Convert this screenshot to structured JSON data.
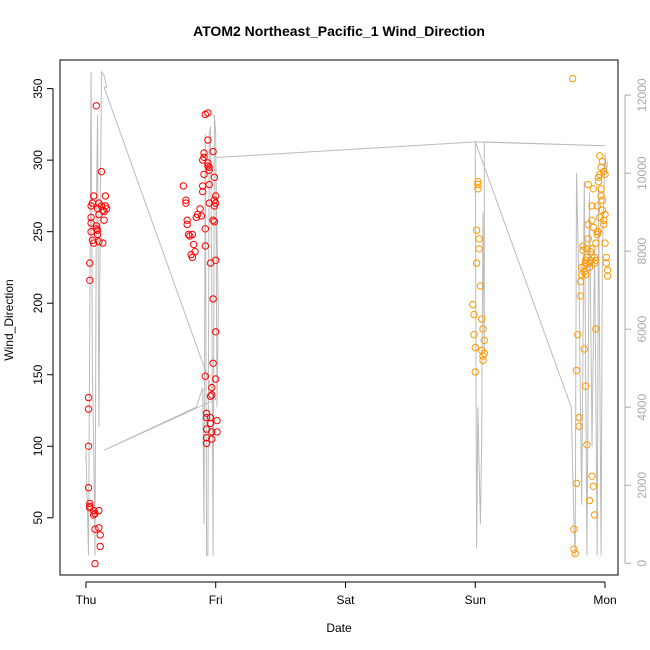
{
  "chart_data": {
    "type": "scatter",
    "title": "ATOM2 Northeast_Pacific_1 Wind_Direction",
    "xlabel": "Date",
    "ylabel": "Wind_Direction",
    "x_ticks": [
      "Thu",
      "Fri",
      "Sat",
      "Sun",
      "Mon"
    ],
    "xlim": [
      -0.2,
      4.1
    ],
    "ylim": [
      10,
      370
    ],
    "y_ticks": [
      50,
      100,
      150,
      200,
      250,
      300,
      350
    ],
    "y2lim": [
      -300,
      12900
    ],
    "y2_ticks": [
      0,
      2000,
      4000,
      6000,
      8000,
      10000,
      12000
    ],
    "grid": false,
    "colors": {
      "series1": "#ff0000",
      "series2": "#ff9900",
      "secondary_line": "#bbbbbb",
      "axis": "#000000",
      "right_axis": "#aaaaaa"
    },
    "series": [
      {
        "color": "#ff0000",
        "points": [
          [
            0.02,
            100
          ],
          [
            0.02,
            134
          ],
          [
            0.02,
            126
          ],
          [
            0.02,
            71
          ],
          [
            0.03,
            60
          ],
          [
            0.03,
            58
          ],
          [
            0.03,
            57
          ],
          [
            0.03,
            216
          ],
          [
            0.03,
            228
          ],
          [
            0.04,
            250
          ],
          [
            0.04,
            256
          ],
          [
            0.04,
            260
          ],
          [
            0.04,
            268
          ],
          [
            0.05,
            270
          ],
          [
            0.05,
            244
          ],
          [
            0.06,
            275
          ],
          [
            0.06,
            242
          ],
          [
            0.06,
            55
          ],
          [
            0.06,
            52
          ],
          [
            0.07,
            53
          ],
          [
            0.07,
            42
          ],
          [
            0.07,
            18
          ],
          [
            0.08,
            338
          ],
          [
            0.08,
            254
          ],
          [
            0.08,
            252
          ],
          [
            0.09,
            251
          ],
          [
            0.09,
            248
          ],
          [
            0.09,
            266
          ],
          [
            0.1,
            262
          ],
          [
            0.1,
            270
          ],
          [
            0.1,
            243
          ],
          [
            0.1,
            55
          ],
          [
            0.1,
            43
          ],
          [
            0.11,
            38
          ],
          [
            0.11,
            30
          ],
          [
            0.12,
            292
          ],
          [
            0.12,
            268
          ],
          [
            0.13,
            265
          ],
          [
            0.13,
            242
          ],
          [
            0.14,
            264
          ],
          [
            0.14,
            258
          ],
          [
            0.15,
            275
          ],
          [
            0.15,
            268
          ],
          [
            0.16,
            266
          ],
          [
            0.75,
            282
          ],
          [
            0.77,
            272
          ],
          [
            0.77,
            270
          ],
          [
            0.78,
            258
          ],
          [
            0.78,
            255
          ],
          [
            0.79,
            248
          ],
          [
            0.8,
            247
          ],
          [
            0.81,
            234
          ],
          [
            0.82,
            232
          ],
          [
            0.82,
            248
          ],
          [
            0.83,
            241
          ],
          [
            0.84,
            236
          ],
          [
            0.85,
            260
          ],
          [
            0.86,
            262
          ],
          [
            0.88,
            266
          ],
          [
            0.89,
            261
          ],
          [
            0.9,
            282
          ],
          [
            0.9,
            278
          ],
          [
            0.9,
            300
          ],
          [
            0.91,
            302
          ],
          [
            0.91,
            305
          ],
          [
            0.91,
            290
          ],
          [
            0.92,
            332
          ],
          [
            0.92,
            252
          ],
          [
            0.92,
            240
          ],
          [
            0.92,
            149
          ],
          [
            0.93,
            123
          ],
          [
            0.93,
            120
          ],
          [
            0.93,
            112
          ],
          [
            0.93,
            106
          ],
          [
            0.93,
            102
          ],
          [
            0.94,
            333
          ],
          [
            0.94,
            314
          ],
          [
            0.94,
            298
          ],
          [
            0.94,
            296
          ],
          [
            0.95,
            295
          ],
          [
            0.95,
            293
          ],
          [
            0.95,
            283
          ],
          [
            0.95,
            270
          ],
          [
            0.96,
            228
          ],
          [
            0.96,
            135
          ],
          [
            0.96,
            120
          ],
          [
            0.96,
            116
          ],
          [
            0.97,
            141
          ],
          [
            0.97,
            136
          ],
          [
            0.97,
            105
          ],
          [
            0.97,
            110
          ],
          [
            0.98,
            306
          ],
          [
            0.98,
            258
          ],
          [
            0.98,
            203
          ],
          [
            0.98,
            158
          ],
          [
            0.99,
            288
          ],
          [
            0.99,
            272
          ],
          [
            0.99,
            268
          ],
          [
            0.99,
            257
          ],
          [
            1.0,
            275
          ],
          [
            1.0,
            270
          ],
          [
            1.0,
            230
          ],
          [
            1.0,
            180
          ],
          [
            1.01,
            110
          ],
          [
            1.01,
            118
          ],
          [
            1.0,
            147
          ]
        ]
      },
      {
        "color": "#ff9900",
        "points": [
          [
            2.98,
            199
          ],
          [
            2.99,
            192
          ],
          [
            2.99,
            178
          ],
          [
            3.0,
            169
          ],
          [
            3.0,
            152
          ],
          [
            3.01,
            228
          ],
          [
            3.01,
            251
          ],
          [
            3.02,
            280
          ],
          [
            3.02,
            283
          ],
          [
            3.02,
            285
          ],
          [
            3.03,
            245
          ],
          [
            3.03,
            238
          ],
          [
            3.04,
            212
          ],
          [
            3.05,
            189
          ],
          [
            3.05,
            167
          ],
          [
            3.06,
            163
          ],
          [
            3.06,
            160
          ],
          [
            3.06,
            182
          ],
          [
            3.07,
            165
          ],
          [
            3.07,
            174
          ],
          [
            3.75,
            357
          ],
          [
            3.76,
            42
          ],
          [
            3.76,
            28
          ],
          [
            3.77,
            25
          ],
          [
            3.78,
            74
          ],
          [
            3.78,
            153
          ],
          [
            3.79,
            178
          ],
          [
            3.8,
            120
          ],
          [
            3.8,
            114
          ],
          [
            3.81,
            205
          ],
          [
            3.81,
            215
          ],
          [
            3.82,
            220
          ],
          [
            3.82,
            225
          ],
          [
            3.83,
            237
          ],
          [
            3.83,
            240
          ],
          [
            3.84,
            222
          ],
          [
            3.84,
            226
          ],
          [
            3.85,
            228
          ],
          [
            3.85,
            230
          ],
          [
            3.85,
            220
          ],
          [
            3.86,
            232
          ],
          [
            3.86,
            238
          ],
          [
            3.87,
            245
          ],
          [
            3.87,
            255
          ],
          [
            3.87,
            283
          ],
          [
            3.88,
            225
          ],
          [
            3.88,
            228
          ],
          [
            3.89,
            230
          ],
          [
            3.89,
            236
          ],
          [
            3.9,
            238
          ],
          [
            3.9,
            258
          ],
          [
            3.9,
            268
          ],
          [
            3.91,
            280
          ],
          [
            3.91,
            253
          ],
          [
            3.92,
            232
          ],
          [
            3.92,
            228
          ],
          [
            3.93,
            230
          ],
          [
            3.93,
            242
          ],
          [
            3.94,
            248
          ],
          [
            3.94,
            250
          ],
          [
            3.95,
            285
          ],
          [
            3.95,
            288
          ],
          [
            3.96,
            290
          ],
          [
            3.96,
            303
          ],
          [
            3.97,
            280
          ],
          [
            3.97,
            275
          ],
          [
            3.98,
            272
          ],
          [
            3.98,
            265
          ],
          [
            3.99,
            258
          ],
          [
            3.99,
            255
          ],
          [
            4.0,
            262
          ],
          [
            4.0,
            242
          ],
          [
            4.01,
            232
          ],
          [
            4.01,
            228
          ],
          [
            4.02,
            223
          ],
          [
            4.02,
            219
          ],
          [
            3.84,
            168
          ],
          [
            3.85,
            142
          ],
          [
            3.86,
            101
          ],
          [
            3.88,
            62
          ],
          [
            3.9,
            79
          ],
          [
            3.91,
            72
          ],
          [
            3.92,
            52
          ],
          [
            3.93,
            182
          ],
          [
            3.94,
            268
          ],
          [
            3.95,
            250
          ],
          [
            3.96,
            260
          ],
          [
            3.97,
            295
          ],
          [
            3.98,
            299
          ],
          [
            3.99,
            292
          ],
          [
            4.0,
            290
          ]
        ]
      }
    ],
    "secondary_line": {
      "axis": "right",
      "points": [
        [
          0.0,
          2600
        ],
        [
          0.0,
          2900
        ],
        [
          0.02,
          200
        ],
        [
          0.04,
          12600
        ],
        [
          0.05,
          5000
        ],
        [
          0.06,
          3000
        ],
        [
          0.07,
          200
        ],
        [
          0.08,
          9000
        ],
        [
          0.09,
          11500
        ],
        [
          0.1,
          3500
        ],
        [
          0.11,
          8800
        ],
        [
          0.12,
          12600
        ],
        [
          0.14,
          12500
        ],
        [
          0.16,
          12200
        ],
        [
          0.14,
          12200
        ],
        [
          1.0,
          4200
        ],
        [
          0.14,
          2900
        ],
        [
          0.85,
          4000
        ],
        [
          0.9,
          4500
        ],
        [
          0.91,
          1000
        ],
        [
          0.92,
          11000
        ],
        [
          0.93,
          200
        ],
        [
          0.94,
          200
        ],
        [
          0.95,
          11000
        ],
        [
          0.96,
          11200
        ],
        [
          0.97,
          7000
        ],
        [
          0.98,
          200
        ],
        [
          0.99,
          11500
        ],
        [
          1.0,
          11000
        ],
        [
          1.01,
          4000
        ],
        [
          1.02,
          6500
        ],
        [
          1.0,
          10500
        ],
        [
          1.0,
          10400
        ],
        [
          3.0,
          10800
        ],
        [
          3.01,
          400
        ],
        [
          3.02,
          4000
        ],
        [
          3.03,
          2500
        ],
        [
          3.04,
          1000
        ],
        [
          3.05,
          3200
        ],
        [
          3.06,
          9000
        ],
        [
          3.07,
          5500
        ],
        [
          3.07,
          10800
        ],
        [
          4.0,
          10700
        ],
        [
          3.0,
          10800
        ],
        [
          3.74,
          4000
        ],
        [
          3.76,
          1000
        ],
        [
          3.77,
          200
        ],
        [
          3.78,
          10000
        ],
        [
          3.8,
          7000
        ],
        [
          3.82,
          1500
        ],
        [
          3.84,
          9800
        ],
        [
          3.86,
          200
        ],
        [
          3.88,
          9500
        ],
        [
          3.9,
          3000
        ],
        [
          3.92,
          8000
        ],
        [
          3.94,
          200
        ],
        [
          3.95,
          9600
        ],
        [
          3.97,
          200
        ],
        [
          3.98,
          8000
        ],
        [
          4.0,
          10500
        ],
        [
          4.01,
          10000
        ],
        [
          4.02,
          10300
        ]
      ]
    }
  }
}
